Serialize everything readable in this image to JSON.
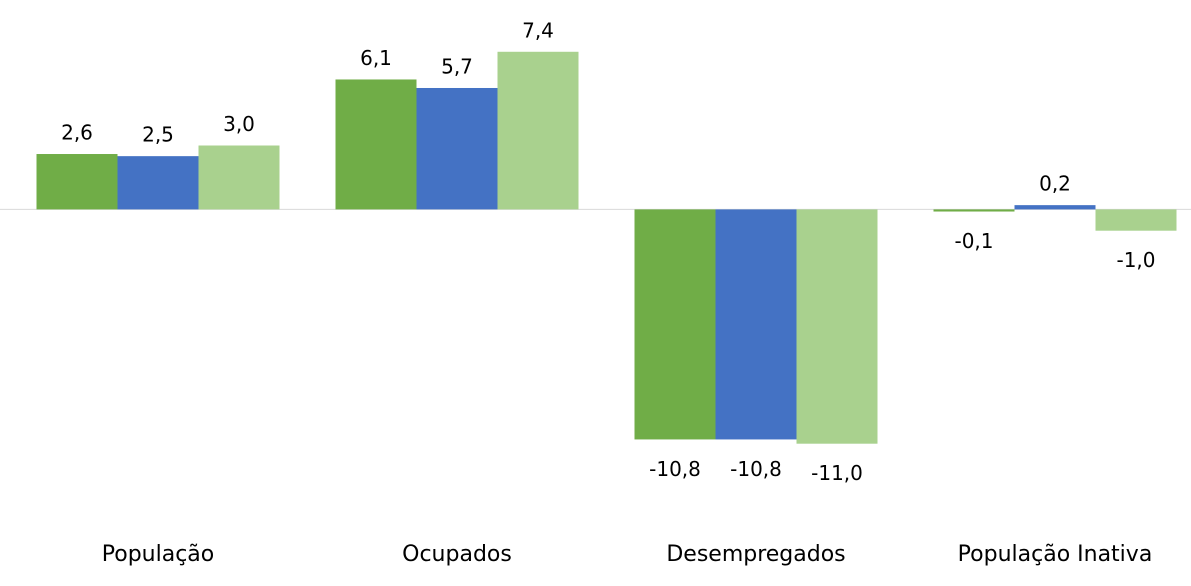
{
  "chart_data": {
    "type": "bar",
    "categories": [
      "População",
      "Ocupados",
      "Desempregados",
      "População Inativa"
    ],
    "series": [
      {
        "color": "#70ad47",
        "values": [
          2.6,
          6.1,
          -10.8,
          -0.1
        ],
        "value_labels": [
          "2,6",
          "6,1",
          "-10,8",
          "-0,1"
        ]
      },
      {
        "color": "#4472c4",
        "values": [
          2.5,
          5.7,
          -10.8,
          0.2
        ],
        "value_labels": [
          "2,5",
          "5,7",
          "-10,8",
          "0,2"
        ]
      },
      {
        "color": "#a9d18e",
        "values": [
          3.0,
          7.4,
          -11.0,
          -1.0
        ],
        "value_labels": [
          "3,0",
          "7,4",
          "-11,0",
          "-1,0"
        ]
      }
    ],
    "ylim": [
      -12,
      8
    ]
  }
}
